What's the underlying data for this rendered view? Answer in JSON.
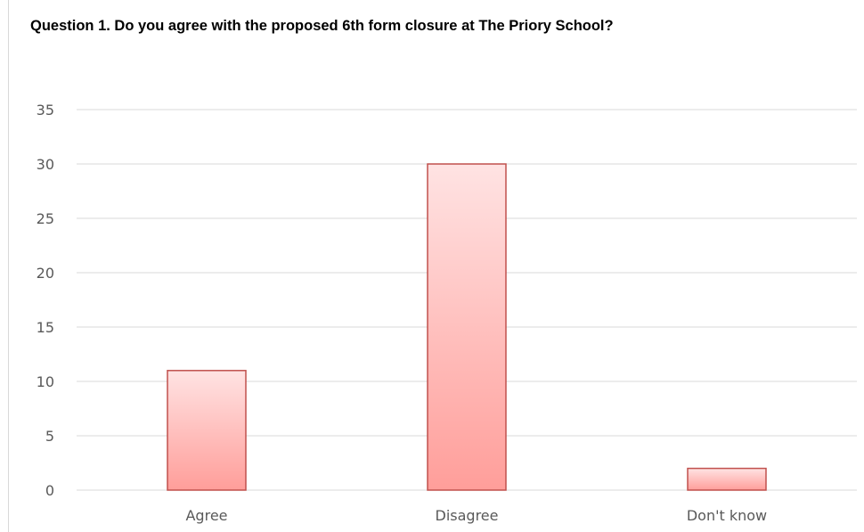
{
  "chart_data": {
    "type": "bar",
    "title": "Question 1. Do you agree with the proposed 6th form closure at The Priory School?",
    "categories": [
      "Agree",
      "Disagree",
      "Don't know"
    ],
    "values": [
      11,
      30,
      2
    ],
    "xlabel": "",
    "ylabel": "",
    "ylim": [
      0,
      35
    ],
    "yticks": [
      0,
      5,
      10,
      15,
      20,
      25,
      30,
      35
    ],
    "grid": true,
    "legend": "none",
    "colors": {
      "bar_top": "#ffe3e3",
      "bar_bottom": "#ff9e9a",
      "bar_border": "#c0504d",
      "grid": "#d9d9d9",
      "tick_text": "#595959"
    }
  }
}
